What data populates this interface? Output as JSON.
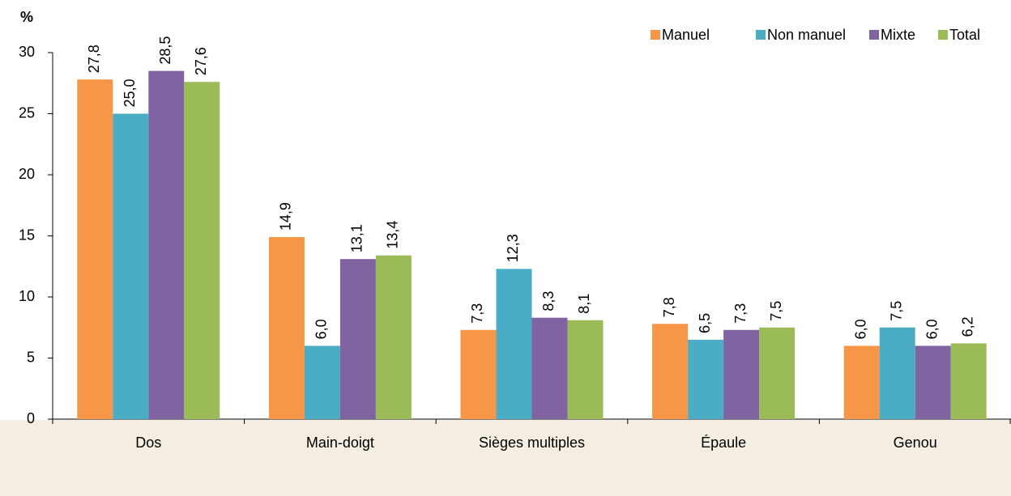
{
  "chart_data": {
    "type": "bar",
    "y_label": "%",
    "categories": [
      "Dos",
      "Main-doigt",
      "Sièges multiples",
      "Épaule",
      "Genou"
    ],
    "series": [
      {
        "name": "Manuel",
        "color": "#f79646",
        "values": [
          27.8,
          14.9,
          7.3,
          7.8,
          6.0
        ],
        "value_labels": [
          "27,8",
          "14,9",
          "7,3",
          "7,8",
          "6,0"
        ]
      },
      {
        "name": "Non manuel",
        "color": "#4bacc6",
        "values": [
          25.0,
          6.0,
          12.3,
          6.5,
          7.5
        ],
        "value_labels": [
          "25,0",
          "6,0",
          "12,3",
          "6,5",
          "7,5"
        ]
      },
      {
        "name": "Mixte",
        "color": "#8064a2",
        "values": [
          28.5,
          13.1,
          8.3,
          7.3,
          6.0
        ],
        "value_labels": [
          "28,5",
          "13,1",
          "8,3",
          "7,3",
          "6,0"
        ]
      },
      {
        "name": "Total",
        "color": "#9bbb59",
        "values": [
          27.6,
          13.4,
          8.1,
          7.5,
          6.2
        ],
        "value_labels": [
          "27,6",
          "13,4",
          "8,1",
          "7,5",
          "6,2"
        ]
      }
    ],
    "ylim": [
      0,
      30
    ],
    "yticks": [
      0,
      5,
      10,
      15,
      20,
      25,
      30
    ],
    "legend": "top-right"
  }
}
